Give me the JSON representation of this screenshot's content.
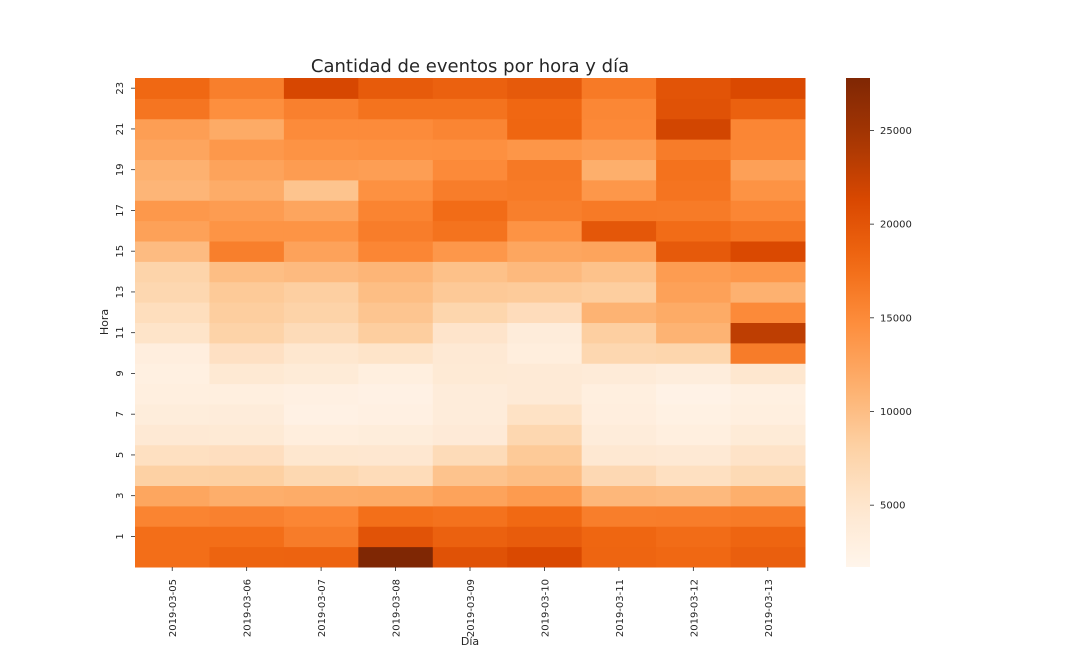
{
  "chart_data": {
    "type": "heatmap",
    "title": "Cantidad de eventos por hora y día",
    "xlabel": "Día",
    "ylabel": "Hora",
    "x_categories": [
      "2019-03-05",
      "2019-03-06",
      "2019-03-07",
      "2019-03-08",
      "2019-03-09",
      "2019-03-10",
      "2019-03-11",
      "2019-03-12",
      "2019-03-13"
    ],
    "y_categories": [
      0,
      1,
      2,
      3,
      4,
      5,
      6,
      7,
      8,
      9,
      10,
      11,
      12,
      13,
      14,
      15,
      16,
      17,
      18,
      19,
      20,
      21,
      22,
      23
    ],
    "y_tick_labels_shown": [
      "1",
      "3",
      "5",
      "7",
      "9",
      "11",
      "13",
      "15",
      "17",
      "19",
      "21",
      "23"
    ],
    "colormap": "Oranges",
    "vmin": 1700,
    "vmax": 27800,
    "colorbar_ticks": [
      5000,
      10000,
      15000,
      20000,
      25000
    ],
    "values": [
      [
        17600,
        18500,
        18600,
        27800,
        20300,
        21200,
        18400,
        18100,
        19000
      ],
      [
        17600,
        17600,
        16300,
        20200,
        18800,
        19300,
        18300,
        17700,
        18400
      ],
      [
        15600,
        15800,
        15400,
        17500,
        17200,
        18000,
        16100,
        16200,
        16400
      ],
      [
        12300,
        11500,
        11700,
        11800,
        12600,
        13400,
        10600,
        10400,
        11400
      ],
      [
        8100,
        8200,
        7100,
        6500,
        9500,
        10000,
        7000,
        5900,
        6800
      ],
      [
        5900,
        6100,
        4800,
        4700,
        6600,
        8800,
        4500,
        4300,
        5400
      ],
      [
        4300,
        4200,
        3300,
        3500,
        4000,
        7200,
        3600,
        3100,
        3900
      ],
      [
        3500,
        3600,
        2500,
        2700,
        3600,
        5600,
        3200,
        2600,
        3000
      ],
      [
        3000,
        3100,
        2700,
        2500,
        3600,
        4100,
        3000,
        2300,
        2800
      ],
      [
        2800,
        4400,
        3900,
        3000,
        4200,
        4100,
        3800,
        3400,
        4800
      ],
      [
        3200,
        5800,
        4800,
        5300,
        4300,
        3300,
        7200,
        7400,
        16300
      ],
      [
        5300,
        7800,
        6600,
        8400,
        5200,
        3600,
        8300,
        11000,
        23000
      ],
      [
        6200,
        8400,
        7800,
        9300,
        7400,
        6400,
        11000,
        11800,
        15000
      ],
      [
        7200,
        8800,
        8300,
        10000,
        8900,
        8700,
        8400,
        12800,
        11200
      ],
      [
        7600,
        10000,
        10300,
        10800,
        9700,
        10400,
        9600,
        13300,
        13800
      ],
      [
        10200,
        16000,
        12700,
        15400,
        13800,
        12300,
        12500,
        19500,
        21200
      ],
      [
        12800,
        14100,
        14100,
        16200,
        17100,
        14200,
        19800,
        17700,
        16900
      ],
      [
        13700,
        13300,
        12400,
        15600,
        17700,
        16000,
        16500,
        16400,
        15400
      ],
      [
        10800,
        11700,
        9400,
        14400,
        16200,
        16400,
        13800,
        17000,
        14200
      ],
      [
        11200,
        12600,
        13300,
        13100,
        15000,
        16600,
        11400,
        17200,
        12900
      ],
      [
        12400,
        13700,
        14200,
        14400,
        14500,
        13900,
        13300,
        16300,
        15300
      ],
      [
        13100,
        11800,
        14900,
        14900,
        15500,
        18300,
        15100,
        21700,
        15400
      ],
      [
        16900,
        14600,
        15900,
        17100,
        17100,
        18200,
        15300,
        20300,
        18800
      ],
      [
        18100,
        16000,
        21400,
        19400,
        18800,
        19500,
        16500,
        20100,
        21200
      ]
    ]
  }
}
